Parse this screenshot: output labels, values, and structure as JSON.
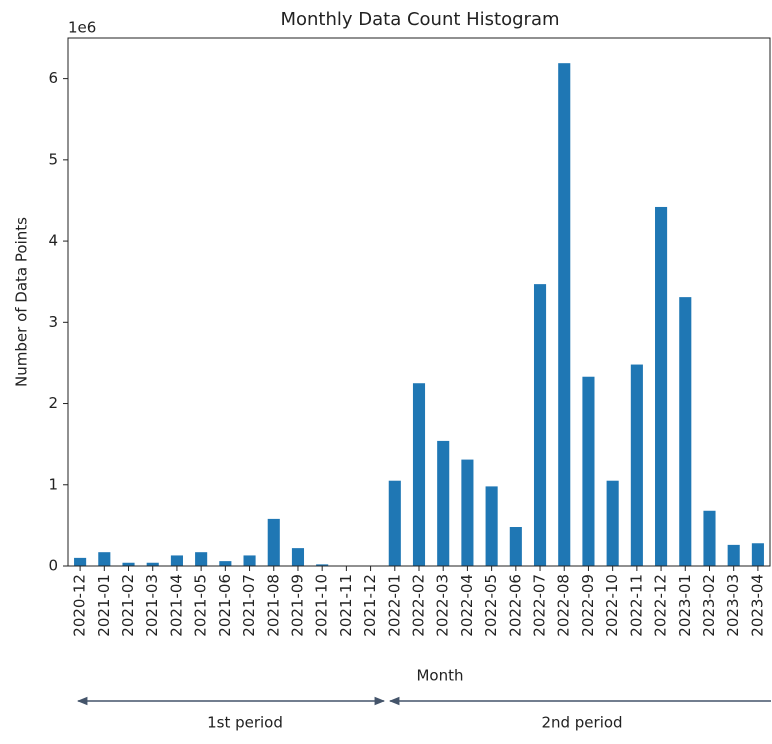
{
  "chart_data": {
    "type": "bar",
    "title": "Monthly Data Count Histogram",
    "x_label": "Month",
    "y_label": "Number of Data Points",
    "y_offset_label": "1e6",
    "categories": [
      "2020-12",
      "2021-01",
      "2021-02",
      "2021-03",
      "2021-04",
      "2021-05",
      "2021-06",
      "2021-07",
      "2021-08",
      "2021-09",
      "2021-10",
      "2021-11",
      "2021-12",
      "2022-01",
      "2022-02",
      "2022-03",
      "2022-04",
      "2022-05",
      "2022-06",
      "2022-07",
      "2022-08",
      "2022-09",
      "2022-10",
      "2022-11",
      "2022-12",
      "2023-01",
      "2023-02",
      "2023-03",
      "2023-04"
    ],
    "values": [
      0.1,
      0.17,
      0.04,
      0.04,
      0.13,
      0.17,
      0.06,
      0.13,
      0.58,
      0.22,
      0.02,
      0,
      0,
      1.05,
      2.25,
      1.54,
      1.31,
      0.98,
      0.48,
      3.47,
      6.19,
      2.33,
      1.05,
      2.48,
      4.42,
      3.31,
      0.68,
      0.26,
      0.28
    ],
    "color": "#1f77b4",
    "ylim": [
      0,
      6.5
    ],
    "yticks": [
      0,
      1,
      2,
      3,
      4,
      5,
      6
    ],
    "annotations": [
      "1st period",
      "2nd period"
    ]
  }
}
